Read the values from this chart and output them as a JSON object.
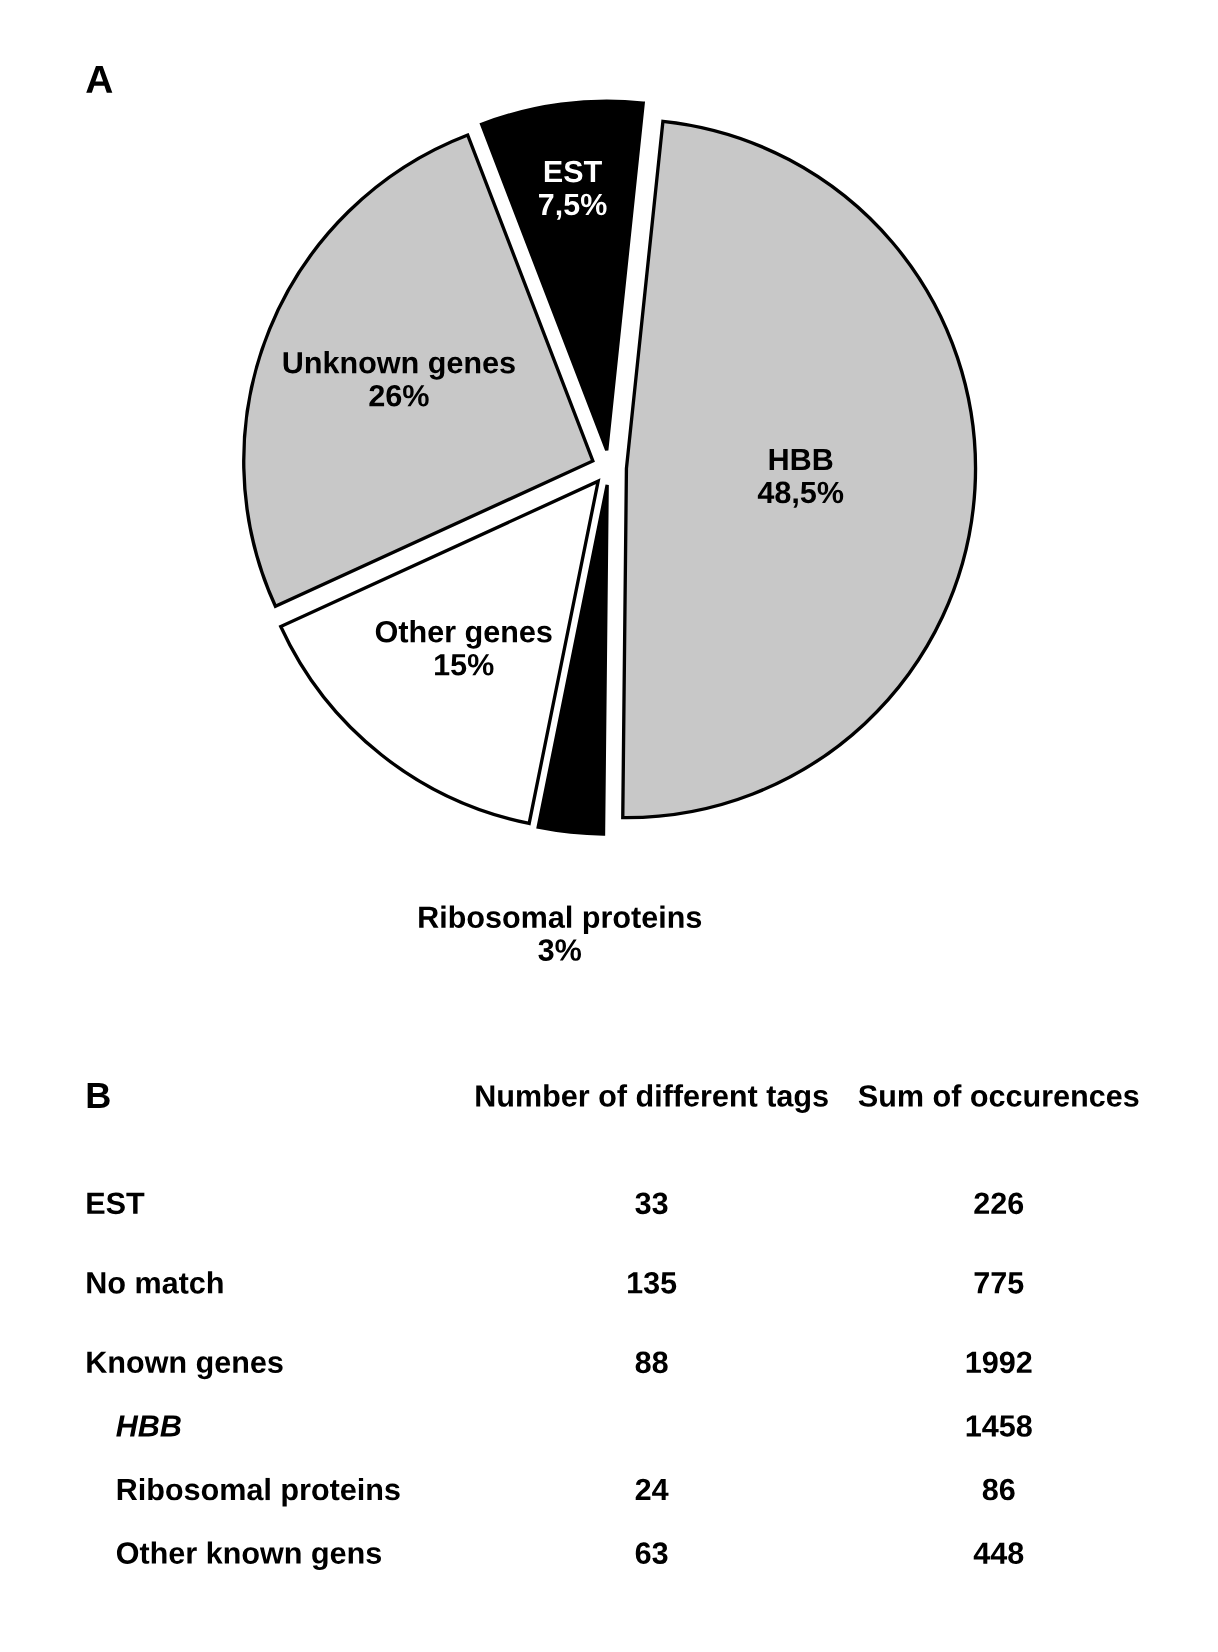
{
  "chart_data": [
    {
      "type": "pie",
      "title": "A",
      "categories": [
        "HBB",
        "Ribosomal proteins",
        "Other genes",
        "Unknown genes",
        "EST"
      ],
      "values": [
        48.5,
        3,
        15,
        26,
        7.5
      ],
      "value_labels": [
        "48,5%",
        "3%",
        "15%",
        "26%",
        "7,5%"
      ],
      "colors": [
        "#c8c8c8",
        "#000000",
        "#ffffff",
        "#c8c8c8",
        "#000000"
      ]
    },
    {
      "type": "other",
      "title": "B",
      "categories": [
        "EST",
        "No match",
        "Known genes",
        "HBB",
        "Ribosomal proteins",
        "Other known gens"
      ],
      "series": [
        {
          "name": "Number of different tags",
          "values": [
            33,
            135,
            88,
            null,
            24,
            63
          ]
        },
        {
          "name": "Sum of occurences",
          "values": [
            226,
            775,
            1992,
            1458,
            86,
            448
          ]
        }
      ],
      "data_labels": true
    }
  ]
}
